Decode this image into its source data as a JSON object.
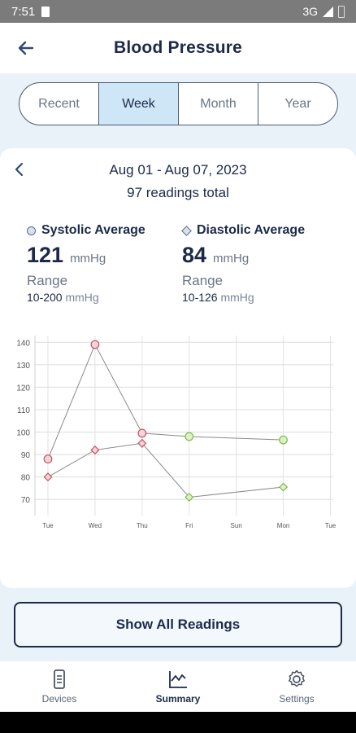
{
  "status_bar": {
    "time": "7:51",
    "network": "3G"
  },
  "app_bar": {
    "title": "Blood Pressure"
  },
  "segments": [
    {
      "label": "Recent",
      "active": false
    },
    {
      "label": "Week",
      "active": true
    },
    {
      "label": "Month",
      "active": false
    },
    {
      "label": "Year",
      "active": false
    }
  ],
  "summary": {
    "date_range": "Aug 01 - Aug 07, 2023",
    "total": "97 readings total",
    "systolic": {
      "label": "Systolic Average",
      "value": "121",
      "unit": "mmHg",
      "range_label": "Range",
      "range": "10-200",
      "range_unit": "mmHg"
    },
    "diastolic": {
      "label": "Diastolic Average",
      "value": "84",
      "unit": "mmHg",
      "range_label": "Range",
      "range": "10-126",
      "range_unit": "mmHg"
    }
  },
  "chart_data": {
    "type": "line",
    "categories": [
      "Tue",
      "Wed",
      "Thu",
      "Fri",
      "Sun",
      "Mon",
      "Tue"
    ],
    "yticks": [
      70,
      80,
      90,
      100,
      110,
      120,
      130,
      140
    ],
    "ylim": [
      65,
      143
    ],
    "grid": true,
    "colors": {
      "high": "#f6d4d8",
      "high_stroke": "#c7506a",
      "normal": "#dff0c9",
      "normal_stroke": "#7bbd4a",
      "line": "#8a8a8a"
    },
    "series": [
      {
        "points": [
          {
            "x": "Tue",
            "y": 88,
            "status": "high"
          },
          {
            "x": "Wed",
            "y": 139,
            "status": "high"
          },
          {
            "x": "Thu",
            "y": 99.5,
            "status": "high"
          },
          {
            "x": "Fri",
            "y": 98,
            "status": "normal"
          },
          {
            "x": "Mon",
            "y": 96.5,
            "status": "normal"
          }
        ]
      },
      {
        "points": [
          {
            "x": "Tue",
            "y": 80,
            "status": "high"
          },
          {
            "x": "Wed",
            "y": 92,
            "status": "high"
          },
          {
            "x": "Thu",
            "y": 95,
            "status": "high"
          },
          {
            "x": "Fri",
            "y": 71,
            "status": "normal"
          },
          {
            "x": "Mon",
            "y": 75.5,
            "status": "normal"
          }
        ]
      }
    ]
  },
  "button": {
    "label": "Show All Readings"
  },
  "bottom_nav": [
    {
      "label": "Devices",
      "icon": "phone-icon",
      "active": false
    },
    {
      "label": "Summary",
      "icon": "chart-icon",
      "active": true
    },
    {
      "label": "Settings",
      "icon": "gear-icon",
      "active": false
    }
  ]
}
